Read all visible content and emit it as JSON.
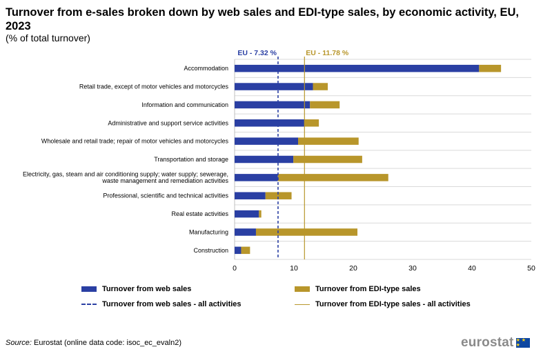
{
  "header": {
    "title": "Turnover from e-sales broken down by web sales and EDI-type sales, by economic activity, EU, 2023",
    "subtitle": "(% of total turnover)"
  },
  "colors": {
    "web": "#2a3fa3",
    "edi": "#b8962b",
    "grid": "#d9d9d9"
  },
  "chart_data": {
    "type": "bar",
    "orientation": "horizontal",
    "stacked": true,
    "categories": [
      "Accommodation",
      "Retail trade, except of motor vehicles and motorcycles",
      "Information and communication",
      "Administrative and support service activities",
      "Wholesale and retail trade; repair of motor vehicles and motorcycles",
      "Transportation and storage",
      "Electricity, gas, steam and air conditioning supply; water supply; sewerage, waste management and remediation activities",
      "Professional, scientific and technical activities",
      "Real estate activities",
      "Manufacturing",
      "Construction"
    ],
    "series": [
      {
        "name": "Turnover from web sales",
        "values": [
          41.2,
          13.2,
          12.7,
          11.8,
          10.7,
          9.9,
          7.3,
          5.2,
          4.1,
          3.6,
          1.1
        ]
      },
      {
        "name": "Turnover from EDI-type sales",
        "values": [
          3.7,
          2.5,
          5.0,
          2.4,
          10.2,
          11.6,
          18.6,
          4.4,
          0.4,
          17.1,
          1.5
        ]
      }
    ],
    "reference_lines": [
      {
        "name": "Turnover from web sales - all activities",
        "label": "EU - 7.32 %",
        "value": 7.32,
        "style": "dashed"
      },
      {
        "name": "Turnover from EDI-type sales  - all activities",
        "label": "EU - 11.78 %",
        "value": 11.78,
        "style": "solid"
      }
    ],
    "xlim": [
      0,
      50
    ],
    "xticks": [
      0,
      10,
      20,
      30,
      40,
      50
    ],
    "grid": true,
    "legend_placement": "bottom"
  },
  "legend": {
    "web_bar": "Turnover from web sales",
    "edi_bar": "Turnover from EDI-type sales",
    "web_line": "Turnover from web sales - all activities",
    "edi_line": "Turnover from EDI-type sales  - all activities"
  },
  "footer": {
    "source_label": "Source:",
    "source_text": "Eurostat (online data code: isoc_ec_evaln2)",
    "brand": "eurostat",
    "flag_stars": "★ ★ ★"
  }
}
